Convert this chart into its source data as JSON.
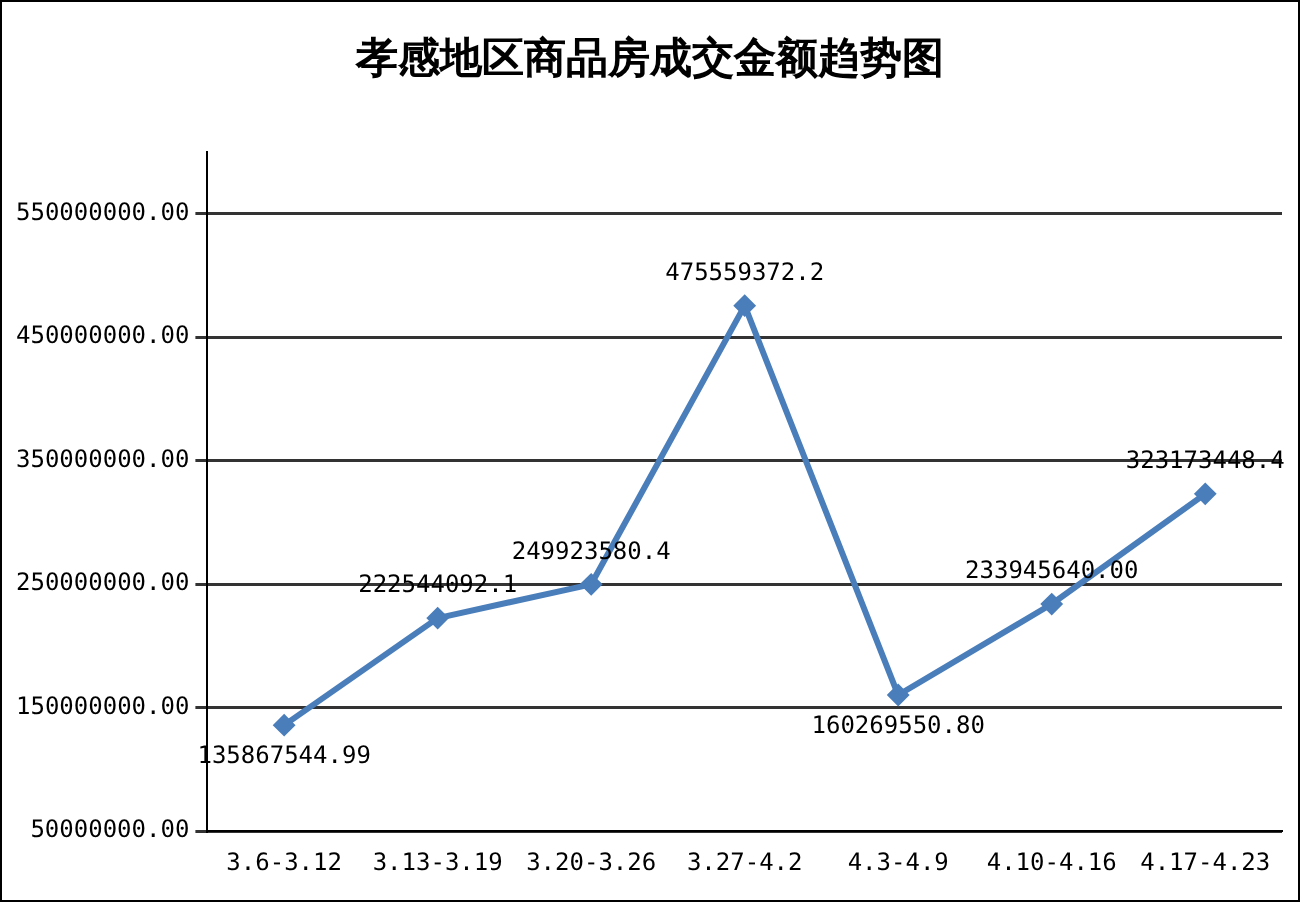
{
  "chart_data": {
    "type": "line",
    "title": "孝感地区商品房成交金额趋势图",
    "categories": [
      "3.6-3.12",
      "3.13-3.19",
      "3.20-3.26",
      "3.27-4.2",
      "4.3-4.9",
      "4.10-4.16",
      "4.17-4.23"
    ],
    "series": [
      {
        "color": "#4a7ebb",
        "values": [
          135867544.99,
          222544092.1,
          249923580.4,
          475559372.2,
          160269550.8,
          233945640.0,
          323173448.4
        ],
        "value_labels": [
          "135867544.99",
          "222544092.1",
          "249923580.4",
          "475559372.2",
          "160269550.80",
          "233945640.00",
          "323173448.4"
        ]
      }
    ],
    "ylim": [
      50000000,
      600000000
    ],
    "yticks": [
      {
        "value": 50000000,
        "label": "50000000.00"
      },
      {
        "value": 150000000,
        "label": "150000000.00"
      },
      {
        "value": 250000000,
        "label": "250000000.00"
      },
      {
        "value": 350000000,
        "label": "350000000.00"
      },
      {
        "value": 450000000,
        "label": "450000000.00"
      },
      {
        "value": 550000000,
        "label": "550000000.00"
      }
    ],
    "grid": "y",
    "marker": "diamond",
    "line_style": "solid",
    "legend": false
  }
}
